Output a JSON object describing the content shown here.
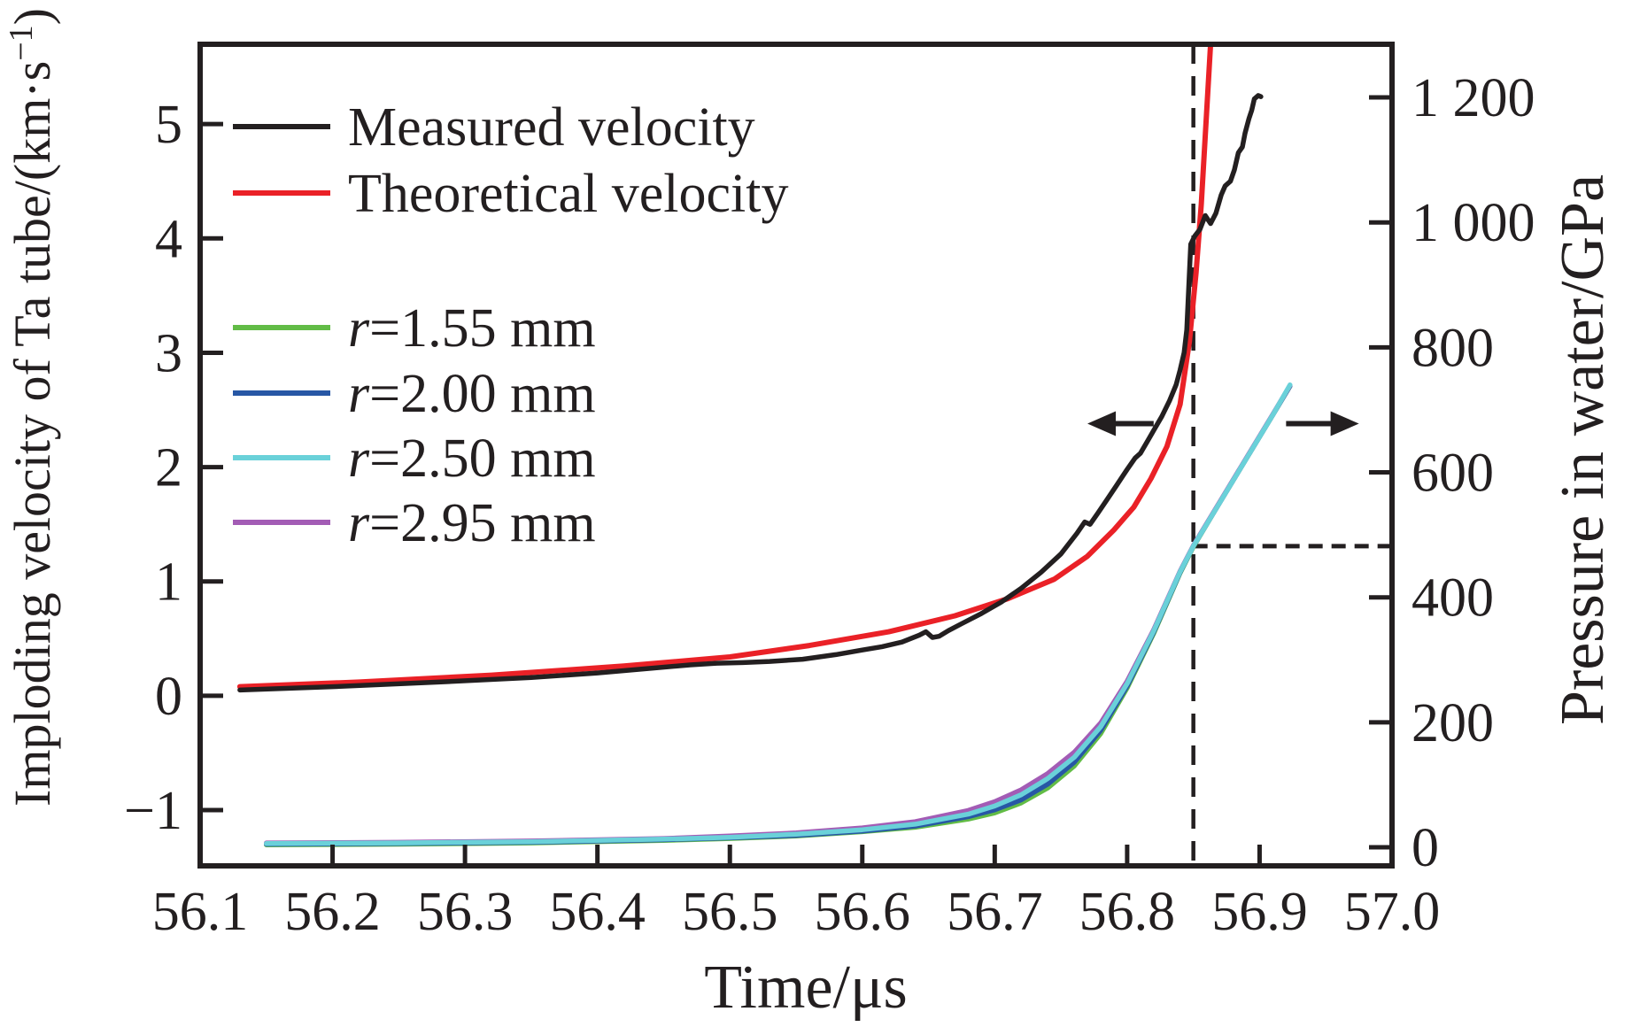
{
  "figure": {
    "background": "#ffffff",
    "frame_color": "#231f20"
  },
  "legend": {
    "velocity_items": [
      {
        "label_italic": "",
        "label": "Measured velocity",
        "color": "#231f20"
      },
      {
        "label_italic": "",
        "label": "Theoretical velocity",
        "color": "#ea2127"
      }
    ],
    "radius_items": [
      {
        "label_italic": "r",
        "label": "=1.55 mm",
        "color": "#62bc46"
      },
      {
        "label_italic": "r",
        "label": "=2.00 mm",
        "color": "#2757a5"
      },
      {
        "label_italic": "r",
        "label": "=2.50 mm",
        "color": "#6ad1d9"
      },
      {
        "label_italic": "r",
        "label": "=2.95 mm",
        "color": "#a35cb5"
      }
    ]
  },
  "chart_data": {
    "type": "line",
    "title": "",
    "x_axis": {
      "label": "Time/μs",
      "min": 56.1,
      "max": 57.0,
      "ticks": [
        {
          "v": 56.1,
          "label": "56.1"
        },
        {
          "v": 56.2,
          "label": "56.2"
        },
        {
          "v": 56.3,
          "label": "56.3"
        },
        {
          "v": 56.4,
          "label": "56.4"
        },
        {
          "v": 56.5,
          "label": "56.5"
        },
        {
          "v": 56.6,
          "label": "56.6"
        },
        {
          "v": 56.7,
          "label": "56.7"
        },
        {
          "v": 56.8,
          "label": "56.8"
        },
        {
          "v": 56.9,
          "label": "56.9"
        },
        {
          "v": 57.0,
          "label": "57.0"
        }
      ]
    },
    "y_left": {
      "label_main": "Imploding velocity of Ta tube/(km·s",
      "label_sup": "−1",
      "label_close": ")",
      "units": "km/s",
      "range": [
        -1.4876,
        5.6981
      ],
      "ticks": [
        {
          "v": 5,
          "label": "5"
        },
        {
          "v": 4,
          "label": "4"
        },
        {
          "v": 3,
          "label": "3"
        },
        {
          "v": 2,
          "label": "2"
        },
        {
          "v": 1,
          "label": "1"
        },
        {
          "v": 0,
          "label": "0"
        },
        {
          "v": -1,
          "label": "−1"
        }
      ]
    },
    "y_right": {
      "label": "Pressure in water/GPa",
      "units": "GPa",
      "range": [
        -29.75,
        1285.1
      ],
      "ticks": [
        {
          "v": 0,
          "label": "0"
        },
        {
          "v": 200,
          "label": "200"
        },
        {
          "v": 400,
          "label": "400"
        },
        {
          "v": 600,
          "label": "600"
        },
        {
          "v": 800,
          "label": "800"
        },
        {
          "v": 1000,
          "label": "1 000"
        },
        {
          "v": 1200,
          "label": "1 200"
        }
      ]
    },
    "grid": false,
    "legend_position": "upper-left-inside",
    "series": [
      {
        "name": "Measured velocity",
        "axis": "left",
        "color": "#231f20",
        "width": 5.5,
        "points": [
          [
            56.13,
            0.05
          ],
          [
            56.2,
            0.08
          ],
          [
            56.28,
            0.12
          ],
          [
            56.35,
            0.16
          ],
          [
            56.4,
            0.2
          ],
          [
            56.44,
            0.24
          ],
          [
            56.47,
            0.27
          ],
          [
            56.49,
            0.285
          ],
          [
            56.51,
            0.29
          ],
          [
            56.53,
            0.3
          ],
          [
            56.555,
            0.32
          ],
          [
            56.58,
            0.36
          ],
          [
            56.6,
            0.4
          ],
          [
            56.615,
            0.43
          ],
          [
            56.63,
            0.47
          ],
          [
            56.643,
            0.53
          ],
          [
            56.648,
            0.56
          ],
          [
            56.653,
            0.51
          ],
          [
            56.658,
            0.52
          ],
          [
            56.665,
            0.57
          ],
          [
            56.675,
            0.63
          ],
          [
            56.69,
            0.72
          ],
          [
            56.705,
            0.82
          ],
          [
            56.72,
            0.94
          ],
          [
            56.735,
            1.08
          ],
          [
            56.75,
            1.24
          ],
          [
            56.762,
            1.42
          ],
          [
            56.768,
            1.52
          ],
          [
            56.772,
            1.5
          ],
          [
            56.778,
            1.6
          ],
          [
            56.785,
            1.72
          ],
          [
            56.792,
            1.84
          ],
          [
            56.8,
            1.98
          ],
          [
            56.806,
            2.08
          ],
          [
            56.81,
            2.12
          ],
          [
            56.815,
            2.22
          ],
          [
            56.82,
            2.32
          ],
          [
            56.826,
            2.44
          ],
          [
            56.832,
            2.58
          ],
          [
            56.837,
            2.72
          ],
          [
            56.84,
            2.85
          ],
          [
            56.843,
            3.0
          ],
          [
            56.845,
            3.2
          ],
          [
            56.846,
            3.45
          ],
          [
            56.847,
            3.7
          ],
          [
            56.848,
            3.95
          ],
          [
            56.851,
            4.02
          ],
          [
            56.855,
            4.08
          ],
          [
            56.859,
            4.2
          ],
          [
            56.863,
            4.13
          ],
          [
            56.867,
            4.22
          ],
          [
            56.871,
            4.38
          ],
          [
            56.874,
            4.46
          ],
          [
            56.878,
            4.5
          ],
          [
            56.881,
            4.6
          ],
          [
            56.884,
            4.75
          ],
          [
            56.887,
            4.8
          ],
          [
            56.889,
            4.92
          ],
          [
            56.892,
            5.05
          ],
          [
            56.894,
            5.12
          ],
          [
            56.896,
            5.22
          ],
          [
            56.899,
            5.25
          ],
          [
            56.901,
            5.24
          ]
        ]
      },
      {
        "name": "Theoretical velocity",
        "axis": "left",
        "color": "#ea2127",
        "width": 6,
        "points": [
          [
            56.13,
            0.08
          ],
          [
            56.22,
            0.12
          ],
          [
            56.32,
            0.18
          ],
          [
            56.42,
            0.26
          ],
          [
            56.5,
            0.34
          ],
          [
            56.56,
            0.44
          ],
          [
            56.62,
            0.56
          ],
          [
            56.67,
            0.7
          ],
          [
            56.71,
            0.85
          ],
          [
            56.745,
            1.02
          ],
          [
            56.77,
            1.22
          ],
          [
            56.79,
            1.45
          ],
          [
            56.805,
            1.65
          ],
          [
            56.818,
            1.9
          ],
          [
            56.83,
            2.18
          ],
          [
            56.84,
            2.55
          ],
          [
            56.847,
            3.1
          ],
          [
            56.852,
            3.7
          ],
          [
            56.856,
            4.3
          ],
          [
            56.859,
            4.9
          ],
          [
            56.862,
            5.5
          ],
          [
            56.865,
            6.1
          ]
        ]
      },
      {
        "name": "r=1.55 mm",
        "axis": "right",
        "color": "#62bc46",
        "width": 5.5,
        "points": [
          [
            56.15,
            4
          ],
          [
            56.25,
            5
          ],
          [
            56.35,
            7
          ],
          [
            56.45,
            11
          ],
          [
            56.5,
            14
          ],
          [
            56.55,
            18
          ],
          [
            56.6,
            25
          ],
          [
            56.64,
            32
          ],
          [
            56.68,
            45
          ],
          [
            56.7,
            55
          ],
          [
            56.72,
            71
          ],
          [
            56.74,
            95
          ],
          [
            56.76,
            130
          ],
          [
            56.78,
            182
          ],
          [
            56.8,
            255
          ],
          [
            56.82,
            342
          ],
          [
            56.84,
            439
          ],
          [
            56.85,
            481
          ],
          [
            56.87,
            552
          ],
          [
            56.89,
            622
          ],
          [
            56.91,
            692
          ],
          [
            56.923,
            738
          ]
        ]
      },
      {
        "name": "r=2.00 mm",
        "axis": "right",
        "color": "#2757a5",
        "width": 5.5,
        "points": [
          [
            56.15,
            5
          ],
          [
            56.25,
            6
          ],
          [
            56.35,
            8
          ],
          [
            56.45,
            12
          ],
          [
            56.5,
            15
          ],
          [
            56.55,
            19
          ],
          [
            56.6,
            26
          ],
          [
            56.64,
            34
          ],
          [
            56.68,
            49
          ],
          [
            56.7,
            60
          ],
          [
            56.72,
            76
          ],
          [
            56.74,
            101
          ],
          [
            56.76,
            136
          ],
          [
            56.78,
            187
          ],
          [
            56.8,
            258
          ],
          [
            56.82,
            344
          ],
          [
            56.84,
            440
          ],
          [
            56.85,
            482
          ],
          [
            56.87,
            552
          ],
          [
            56.89,
            622
          ],
          [
            56.91,
            692
          ],
          [
            56.923,
            738
          ]
        ]
      },
      {
        "name": "r=2.95 mm",
        "axis": "right",
        "color": "#a35cb5",
        "width": 5.5,
        "points": [
          [
            56.15,
            7
          ],
          [
            56.25,
            8
          ],
          [
            56.35,
            10
          ],
          [
            56.45,
            14
          ],
          [
            56.5,
            18
          ],
          [
            56.55,
            23
          ],
          [
            56.6,
            31
          ],
          [
            56.64,
            41
          ],
          [
            56.68,
            59
          ],
          [
            56.7,
            73
          ],
          [
            56.72,
            92
          ],
          [
            56.74,
            118
          ],
          [
            56.76,
            152
          ],
          [
            56.78,
            199
          ],
          [
            56.8,
            266
          ],
          [
            56.82,
            348
          ],
          [
            56.84,
            442
          ],
          [
            56.85,
            483
          ],
          [
            56.87,
            553
          ],
          [
            56.89,
            623
          ],
          [
            56.91,
            693
          ],
          [
            56.923,
            739
          ]
        ]
      },
      {
        "name": "r=2.50 mm",
        "axis": "right",
        "color": "#6ad1d9",
        "width": 5.5,
        "points": [
          [
            56.15,
            6
          ],
          [
            56.25,
            7
          ],
          [
            56.35,
            9
          ],
          [
            56.45,
            13
          ],
          [
            56.5,
            16
          ],
          [
            56.55,
            21
          ],
          [
            56.6,
            28
          ],
          [
            56.64,
            37
          ],
          [
            56.68,
            53
          ],
          [
            56.7,
            66
          ],
          [
            56.72,
            84
          ],
          [
            56.74,
            110
          ],
          [
            56.76,
            144
          ],
          [
            56.78,
            193
          ],
          [
            56.8,
            262
          ],
          [
            56.82,
            346
          ],
          [
            56.84,
            441
          ],
          [
            56.85,
            482
          ],
          [
            56.87,
            552
          ],
          [
            56.89,
            622
          ],
          [
            56.91,
            692
          ],
          [
            56.923,
            740
          ]
        ]
      }
    ],
    "annotations": {
      "crosshair": {
        "t": 56.85,
        "pressure_gpa": 482
      },
      "axis_pointer_arrows": [
        {
          "direction": "left",
          "velocity_level": 2.38,
          "t_from": 56.82,
          "t_to": 56.77
        },
        {
          "direction": "right",
          "velocity_level": 2.38,
          "t_from": 56.92,
          "t_to": 56.975
        }
      ]
    }
  }
}
